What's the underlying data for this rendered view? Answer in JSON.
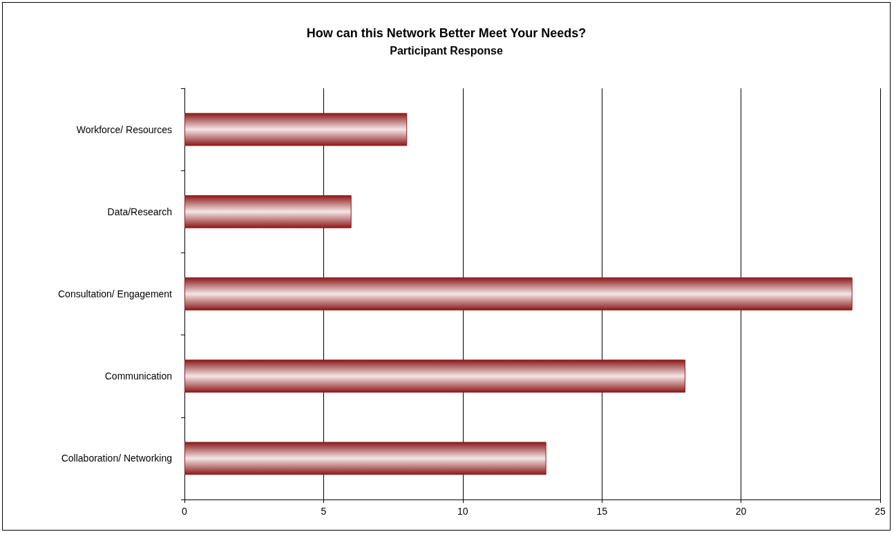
{
  "chart_data": {
    "type": "bar",
    "orientation": "horizontal",
    "title": "How can this Network Better Meet Your Needs?",
    "subtitle": "Participant Response",
    "categories": [
      "Workforce/ Resources",
      "Data/Research",
      "Consultation/ Engagement",
      "Communication",
      "Collaboration/ Networking"
    ],
    "values": [
      8,
      6,
      24,
      18,
      13
    ],
    "color": "#8b1a1a",
    "xlim": [
      0,
      25
    ],
    "xticks": [
      0,
      5,
      10,
      15,
      20,
      25
    ],
    "grid": "x"
  }
}
